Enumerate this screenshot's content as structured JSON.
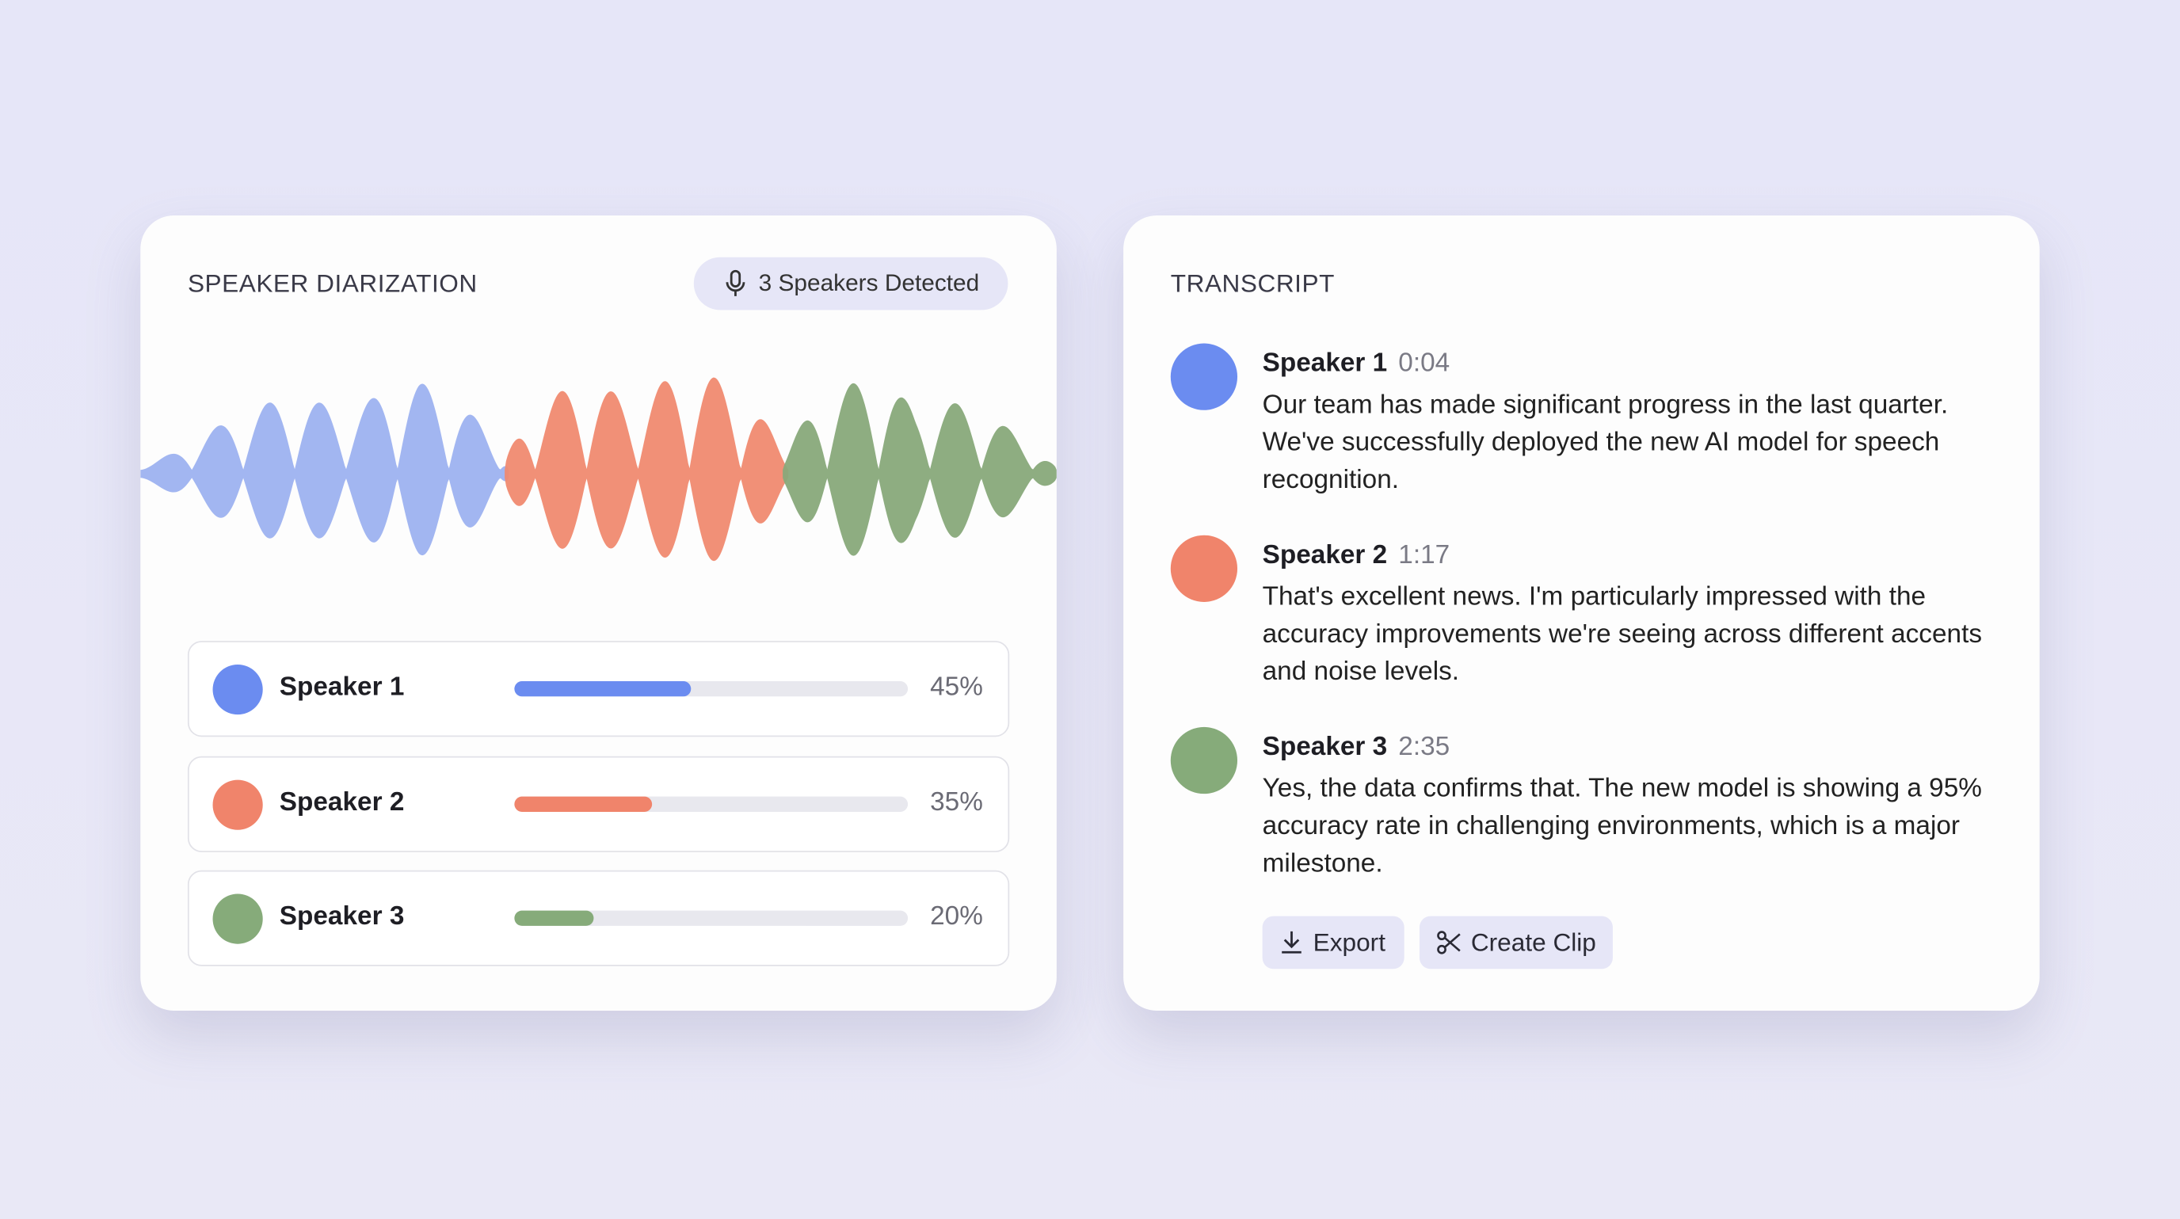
{
  "diarization": {
    "title": "SPEAKER DIARIZATION",
    "badge": "3 Speakers Detected",
    "speakers": [
      {
        "name": "Speaker 1",
        "share": 45,
        "share_label": "45%",
        "color": "#6b8cf0",
        "wave_color": "#9db2f0"
      },
      {
        "name": "Speaker 2",
        "share": 35,
        "share_label": "35%",
        "color": "#f0846b",
        "wave_color": "#f08a70"
      },
      {
        "name": "Speaker 3",
        "share": 20,
        "share_label": "20%",
        "color": "#86ab7a",
        "wave_color": "#88a97a"
      }
    ]
  },
  "transcript": {
    "title": "TRANSCRIPT",
    "entries": [
      {
        "speaker": "Speaker 1",
        "time": "0:04",
        "text": "Our team has made significant progress in the last quarter. We've successfully deployed the new AI model for speech recognition.",
        "color": "#6b8cf0"
      },
      {
        "speaker": "Speaker 2",
        "time": "1:17",
        "text": "That's excellent news. I'm particularly impressed with the accuracy improvements we're seeing across different accents and noise levels.",
        "color": "#f0846b"
      },
      {
        "speaker": "Speaker 3",
        "time": "2:35",
        "text": "Yes, the data confirms that. The new model is showing a 95% accuracy rate in challenging environments, which is a major milestone.",
        "color": "#86ab7a"
      }
    ],
    "buttons": {
      "export": "Export",
      "clip": "Create Clip"
    }
  }
}
